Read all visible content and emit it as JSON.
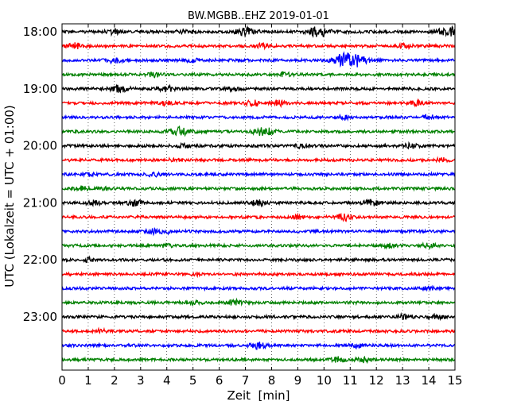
{
  "chart_data": {
    "type": "line",
    "title": "BW.MGBB..EHZ 2019-01-01",
    "xlabel": "Zeit  [min]",
    "ylabel": "UTC (Lokalzeit = UTC + 01:00)",
    "xlim": [
      0,
      15
    ],
    "x_ticks": [
      0,
      1,
      2,
      3,
      4,
      5,
      6,
      7,
      8,
      9,
      10,
      11,
      12,
      13,
      14,
      15
    ],
    "y_tick_labels": [
      "18:00",
      "19:00",
      "20:00",
      "21:00",
      "22:00",
      "23:00"
    ],
    "grid": "vertical dotted",
    "trace_minutes": 15,
    "color_cycle": [
      "#000000",
      "#ff0000",
      "#0000ff",
      "#008000"
    ],
    "series": [
      {
        "start": "18:00",
        "bursts": [
          [
            9.8,
            1.0
          ],
          [
            7.0,
            0.8
          ],
          [
            14.8,
            1.0
          ],
          [
            4.7,
            0.5
          ],
          [
            2.0,
            0.5
          ]
        ]
      },
      {
        "start": "18:15",
        "bursts": [
          [
            0.5,
            0.5
          ],
          [
            7.6,
            0.4
          ],
          [
            13.1,
            0.4
          ]
        ]
      },
      {
        "start": "18:30",
        "bursts": [
          [
            11.0,
            1.6
          ],
          [
            2.0,
            0.5
          ],
          [
            5.0,
            0.4
          ]
        ]
      },
      {
        "start": "18:45",
        "bursts": [
          [
            3.5,
            0.4
          ],
          [
            8.5,
            0.4
          ]
        ]
      },
      {
        "start": "19:00",
        "bursts": [
          [
            2.2,
            0.7
          ],
          [
            4.0,
            0.5
          ],
          [
            6.5,
            0.4
          ]
        ]
      },
      {
        "start": "19:15",
        "bursts": [
          [
            4.0,
            0.4
          ],
          [
            7.3,
            0.5
          ],
          [
            8.3,
            0.5
          ],
          [
            13.5,
            0.4
          ]
        ]
      },
      {
        "start": "19:30",
        "bursts": [
          [
            10.8,
            0.4
          ],
          [
            14.0,
            0.4
          ]
        ]
      },
      {
        "start": "19:45",
        "bursts": [
          [
            4.5,
            0.8
          ],
          [
            7.7,
            0.8
          ]
        ]
      },
      {
        "start": "20:00",
        "bursts": [
          [
            4.6,
            0.4
          ],
          [
            13.3,
            0.5
          ],
          [
            9.1,
            0.3
          ]
        ]
      },
      {
        "start": "20:15",
        "bursts": [
          [
            4.3,
            0.3
          ],
          [
            14.5,
            0.3
          ]
        ]
      },
      {
        "start": "20:30",
        "bursts": [
          [
            3.5,
            0.4
          ],
          [
            1.0,
            0.3
          ]
        ]
      },
      {
        "start": "20:45",
        "bursts": [
          [
            0.8,
            0.4
          ],
          [
            1.5,
            0.3
          ]
        ]
      },
      {
        "start": "21:00",
        "bursts": [
          [
            2.8,
            0.6
          ],
          [
            7.5,
            0.5
          ],
          [
            11.8,
            0.6
          ],
          [
            1.2,
            0.4
          ]
        ]
      },
      {
        "start": "21:15",
        "bursts": [
          [
            10.8,
            0.6
          ],
          [
            9.0,
            0.3
          ]
        ]
      },
      {
        "start": "21:30",
        "bursts": [
          [
            3.5,
            0.4
          ],
          [
            4.0,
            0.3
          ]
        ]
      },
      {
        "start": "21:45",
        "bursts": [
          [
            14.0,
            0.5
          ],
          [
            12.5,
            0.4
          ],
          [
            4.0,
            0.3
          ]
        ]
      },
      {
        "start": "22:00",
        "bursts": [
          [
            1.0,
            0.3
          ]
        ]
      },
      {
        "start": "22:15",
        "bursts": [
          [
            5.0,
            0.3
          ]
        ]
      },
      {
        "start": "22:30",
        "bursts": [
          [
            14.0,
            0.3
          ]
        ]
      },
      {
        "start": "22:45",
        "bursts": [
          [
            6.6,
            0.5
          ],
          [
            5.0,
            0.4
          ]
        ]
      },
      {
        "start": "23:00",
        "bursts": [
          [
            13.0,
            0.4
          ],
          [
            14.3,
            0.4
          ]
        ]
      },
      {
        "start": "23:15",
        "bursts": [
          [
            1.5,
            0.4
          ]
        ]
      },
      {
        "start": "23:30",
        "bursts": [
          [
            7.5,
            0.7
          ],
          [
            11.2,
            0.4
          ]
        ]
      },
      {
        "start": "23:45",
        "bursts": [
          [
            10.5,
            0.5
          ],
          [
            11.5,
            0.4
          ]
        ]
      }
    ]
  }
}
